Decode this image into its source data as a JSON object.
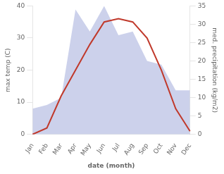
{
  "chart_data": {
    "type": "line",
    "xlabel": "date (month)",
    "ylabel": "max temp (C)",
    "y2label": "med. precipitation (kg/m2)",
    "categories": [
      "Jan",
      "Feb",
      "Mar",
      "Apr",
      "May",
      "Jun",
      "Jul",
      "Aug",
      "Sep",
      "Oct",
      "Nov",
      "Dec"
    ],
    "series": [
      {
        "type": "area",
        "axis": "y2",
        "color": "#b0b8e0",
        "values": [
          7,
          8,
          10,
          34,
          28,
          35,
          27,
          28,
          20,
          19,
          12,
          12
        ]
      },
      {
        "type": "line",
        "color": "#c0392b",
        "values": [
          0,
          2,
          12,
          20,
          28,
          35,
          36,
          35,
          30,
          20,
          8,
          1
        ]
      }
    ],
    "ylim": [
      0,
      40
    ],
    "yticks": [
      0,
      10,
      20,
      30,
      40
    ],
    "y2lim": [
      0,
      35
    ],
    "y2ticks": [
      0,
      5,
      10,
      15,
      20,
      25,
      30,
      35
    ],
    "grid": false
  }
}
